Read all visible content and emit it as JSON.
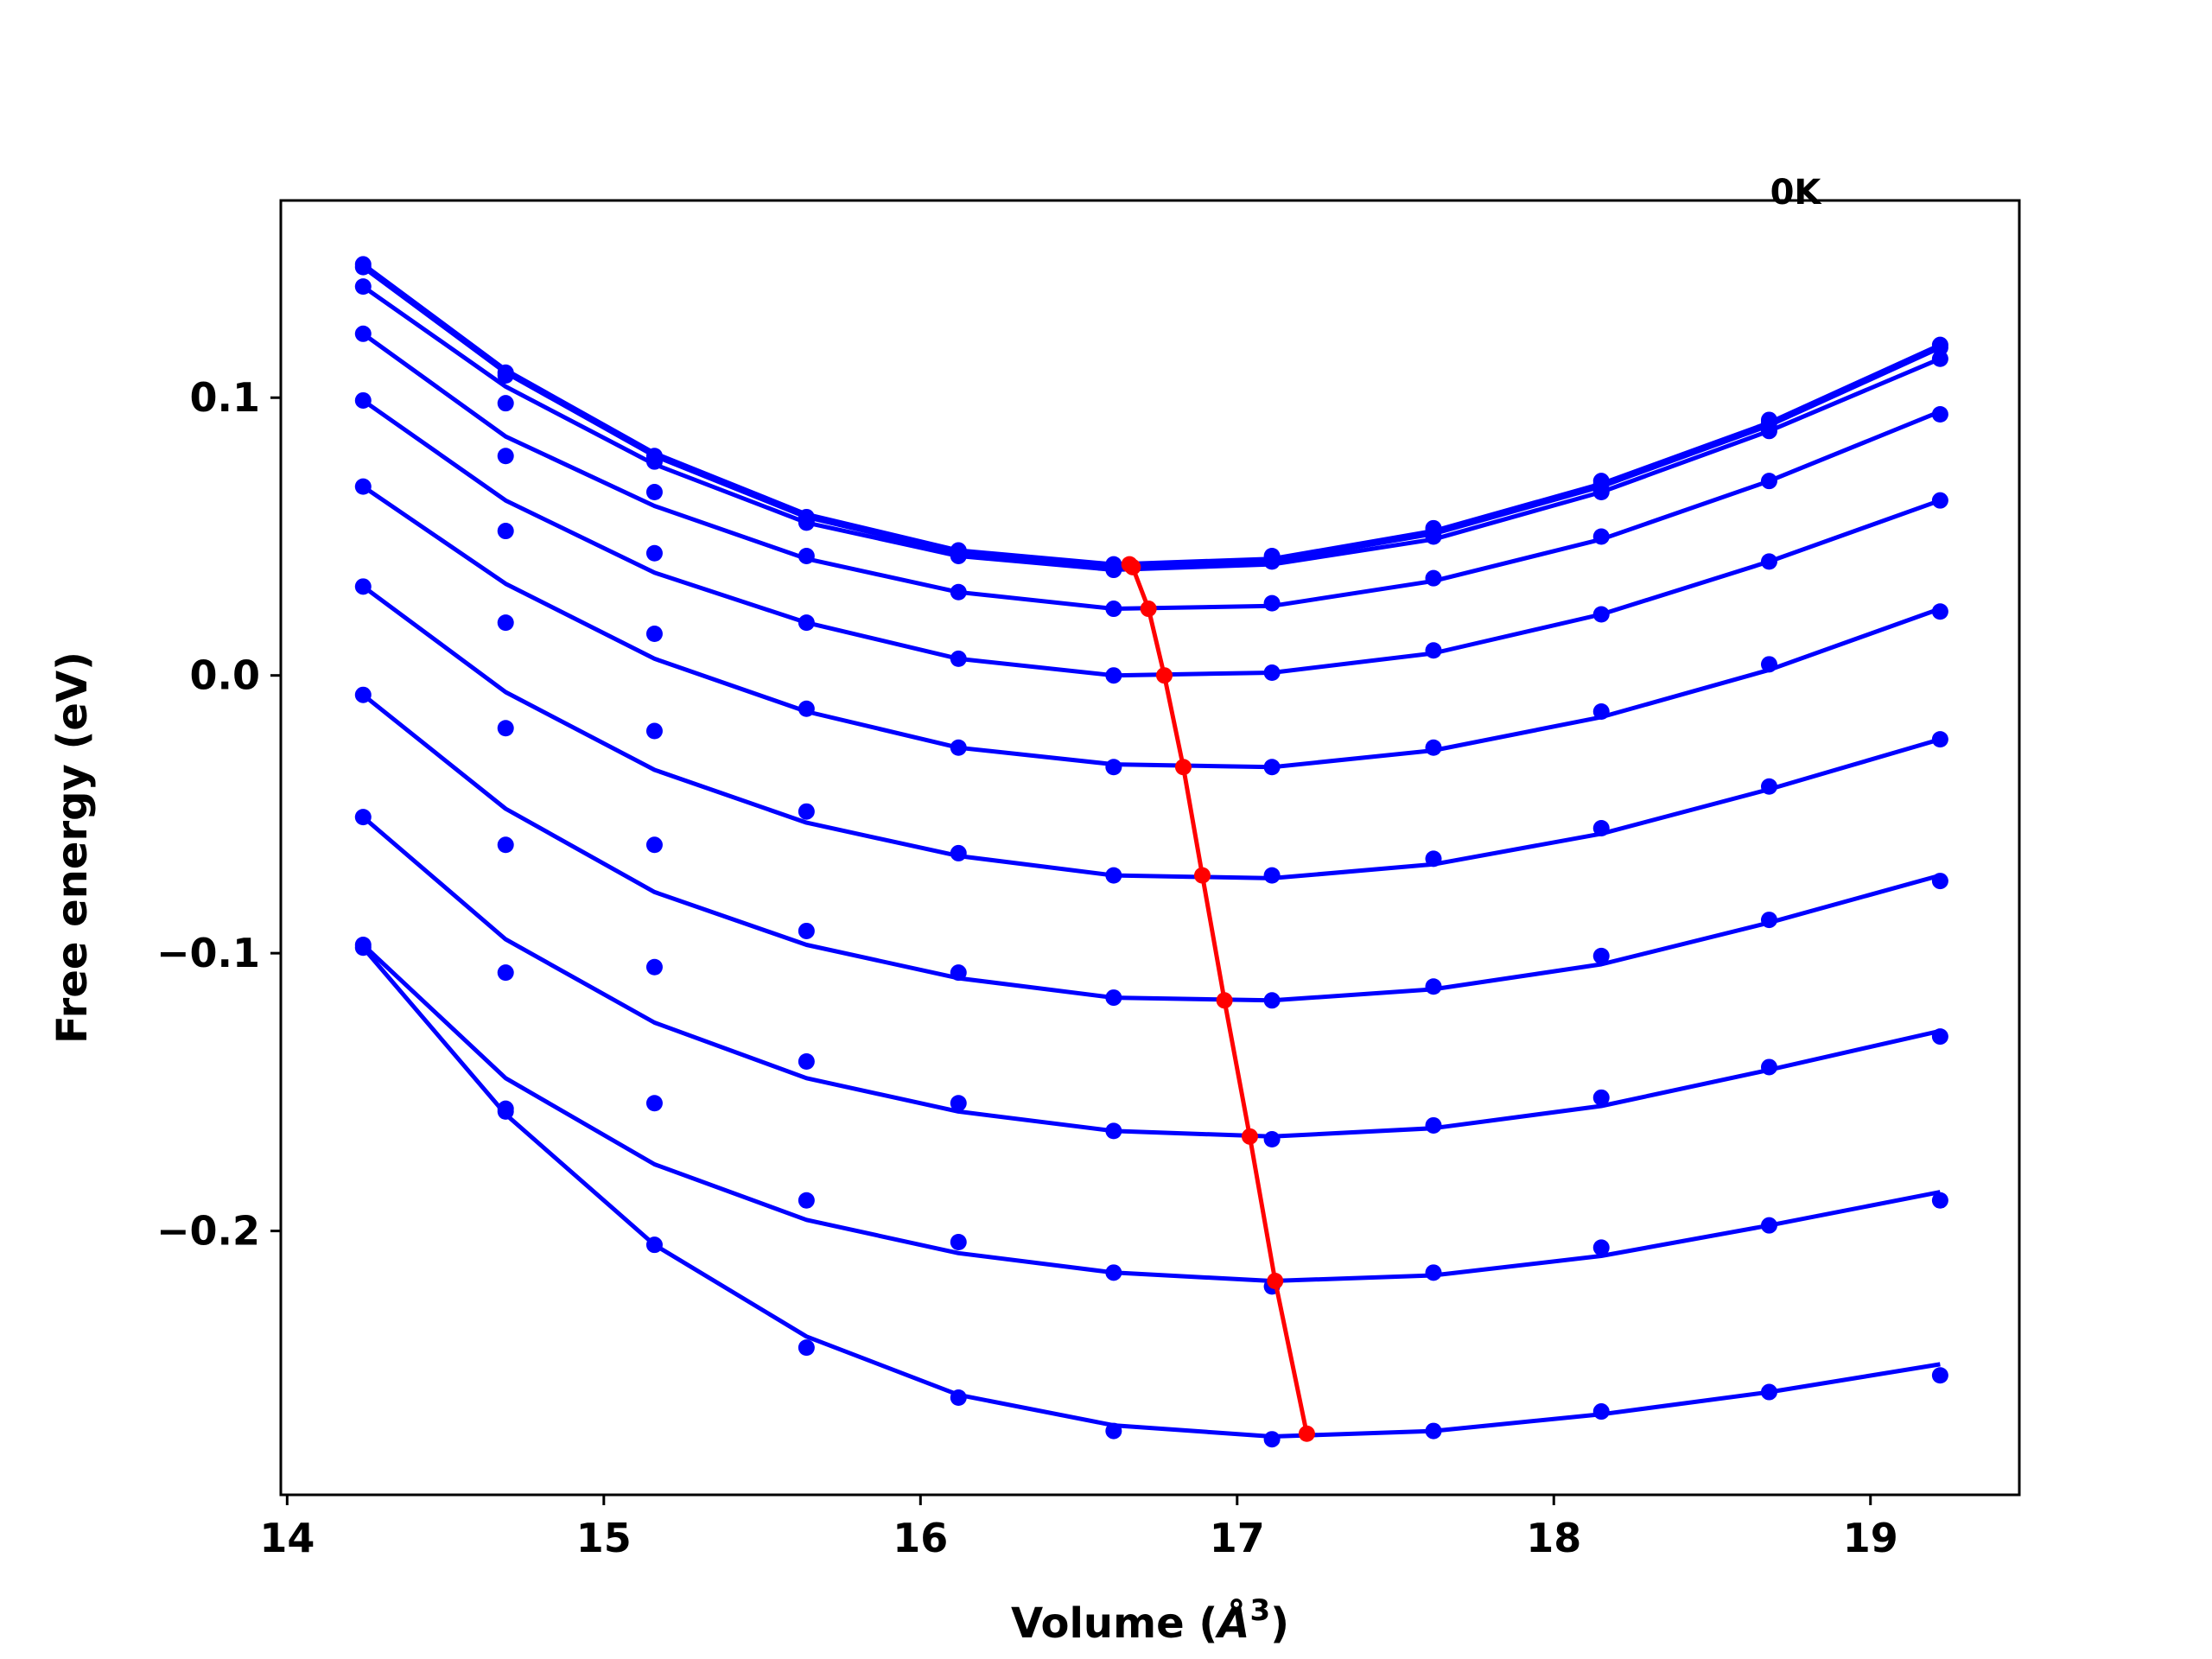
{
  "chart_data": {
    "type": "line",
    "title": "",
    "annotation": "0K",
    "xlabel_main": "Volume (",
    "xlabel_unit": "Å",
    "xlabel_sup": "3",
    "xlabel_close": ")",
    "ylabel": "Free energy (eV)",
    "xlim": [
      13.98,
      19.47
    ],
    "ylim": [
      -0.295,
      0.171
    ],
    "xticks": [
      14,
      15,
      16,
      17,
      18,
      19
    ],
    "xtick_labels": [
      "14",
      "15",
      "16",
      "17",
      "18",
      "19"
    ],
    "yticks": [
      -0.2,
      -0.1,
      0.0,
      0.1
    ],
    "ytick_labels": [
      "−0.2",
      "−0.1",
      "0.0",
      "0.1"
    ],
    "grid": false,
    "curve_color": "#0000ff",
    "min_color": "#ff0000",
    "x": [
      14.24,
      14.69,
      15.16,
      15.64,
      16.12,
      16.61,
      17.11,
      17.62,
      18.15,
      18.68,
      19.22
    ],
    "series": [
      {
        "y": [
          0.148,
          0.109,
          0.079,
          0.057,
          0.045,
          0.04,
          0.043,
          0.053,
          0.07,
          0.092,
          0.119
        ],
        "fit": [
          0.148,
          0.11,
          0.08,
          0.058,
          0.045,
          0.04,
          0.042,
          0.052,
          0.069,
          0.091,
          0.119
        ]
      },
      {
        "y": [
          0.147,
          0.108,
          0.078,
          0.056,
          0.044,
          0.039,
          0.042,
          0.052,
          0.069,
          0.091,
          0.118
        ],
        "fit": [
          0.147,
          0.109,
          0.079,
          0.057,
          0.044,
          0.039,
          0.041,
          0.051,
          0.068,
          0.09,
          0.118
        ]
      },
      {
        "y": [
          0.14,
          0.098,
          0.077,
          0.055,
          0.043,
          0.038,
          0.041,
          0.05,
          0.066,
          0.088,
          0.114
        ],
        "fit": [
          0.14,
          0.104,
          0.076,
          0.055,
          0.043,
          0.038,
          0.04,
          0.049,
          0.066,
          0.088,
          0.114
        ]
      },
      {
        "y": [
          0.123,
          0.079,
          0.066,
          0.043,
          0.03,
          0.024,
          0.026,
          0.035,
          0.05,
          0.07,
          0.094
        ],
        "fit": [
          0.123,
          0.086,
          0.061,
          0.042,
          0.03,
          0.024,
          0.025,
          0.034,
          0.049,
          0.07,
          0.095
        ]
      },
      {
        "y": [
          0.099,
          0.052,
          0.044,
          0.019,
          0.006,
          0.0,
          0.001,
          0.009,
          0.022,
          0.041,
          0.063
        ],
        "fit": [
          0.099,
          0.063,
          0.037,
          0.019,
          0.006,
          0.0,
          0.001,
          0.008,
          0.022,
          0.041,
          0.063
        ]
      },
      {
        "y": [
          0.068,
          0.019,
          0.015,
          -0.012,
          -0.026,
          -0.033,
          -0.033,
          -0.026,
          -0.013,
          0.004,
          0.023
        ],
        "fit": [
          0.068,
          0.033,
          0.006,
          -0.013,
          -0.026,
          -0.032,
          -0.033,
          -0.027,
          -0.015,
          0.002,
          0.024
        ]
      },
      {
        "y": [
          0.032,
          -0.019,
          -0.02,
          -0.049,
          -0.064,
          -0.072,
          -0.072,
          -0.066,
          -0.055,
          -0.04,
          -0.023
        ],
        "fit": [
          0.032,
          -0.006,
          -0.034,
          -0.053,
          -0.065,
          -0.072,
          -0.073,
          -0.068,
          -0.057,
          -0.041,
          -0.023
        ]
      },
      {
        "y": [
          -0.007,
          -0.061,
          -0.061,
          -0.092,
          -0.107,
          -0.116,
          -0.117,
          -0.112,
          -0.101,
          -0.088,
          -0.074
        ],
        "fit": [
          -0.007,
          -0.048,
          -0.078,
          -0.097,
          -0.109,
          -0.116,
          -0.117,
          -0.113,
          -0.104,
          -0.089,
          -0.072
        ]
      },
      {
        "y": [
          -0.051,
          -0.107,
          -0.105,
          -0.139,
          -0.154,
          -0.164,
          -0.167,
          -0.162,
          -0.152,
          -0.141,
          -0.13
        ],
        "fit": [
          -0.051,
          -0.095,
          -0.125,
          -0.145,
          -0.157,
          -0.164,
          -0.166,
          -0.163,
          -0.155,
          -0.142,
          -0.128
        ]
      },
      {
        "y": [
          -0.097,
          -0.156,
          -0.154,
          -0.189,
          -0.204,
          -0.215,
          -0.22,
          -0.215,
          -0.206,
          -0.198,
          -0.189
        ],
        "fit": [
          -0.097,
          -0.145,
          -0.176,
          -0.196,
          -0.208,
          -0.215,
          -0.218,
          -0.216,
          -0.209,
          -0.198,
          -0.186
        ]
      },
      {
        "y": [
          -0.098,
          -0.157,
          -0.205,
          -0.242,
          -0.26,
          -0.272,
          -0.275,
          -0.272,
          -0.265,
          -0.258,
          -0.252
        ],
        "fit": [
          -0.098,
          -0.158,
          -0.205,
          -0.238,
          -0.259,
          -0.27,
          -0.274,
          -0.272,
          -0.266,
          -0.258,
          -0.248
        ]
      }
    ],
    "minima": {
      "x": [
        16.66,
        16.67,
        16.72,
        16.77,
        16.83,
        16.89,
        16.96,
        17.04,
        17.12,
        17.22
      ],
      "y": [
        0.04,
        0.039,
        0.024,
        0.0,
        -0.033,
        -0.072,
        -0.117,
        -0.166,
        -0.218,
        -0.273
      ]
    }
  }
}
